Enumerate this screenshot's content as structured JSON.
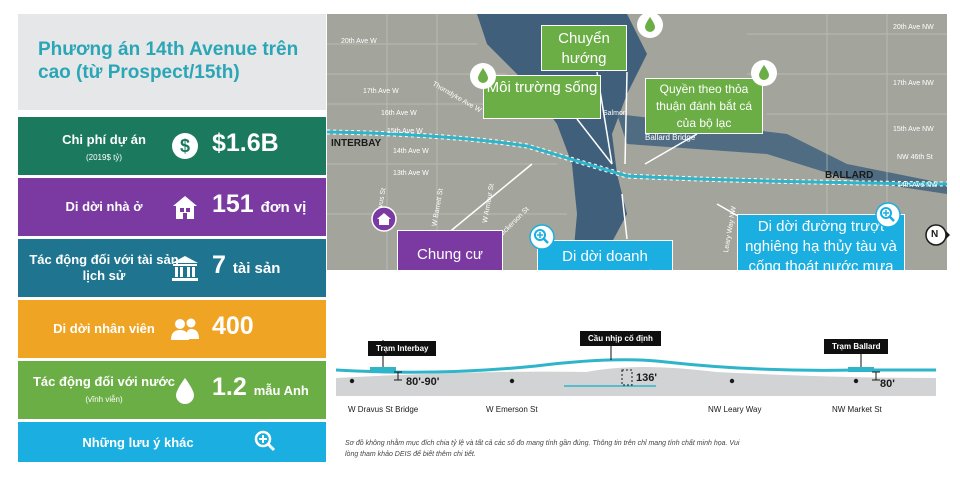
{
  "title": "Phương án 14th Avenue trên cao (từ Prospect/15th)",
  "metrics": {
    "cost": {
      "label": "Chi phí dự án",
      "sublabel": "(2019$ tỷ)",
      "value": "$1.6B",
      "icon": "dollar-icon"
    },
    "housing": {
      "label": "Di dời nhà ở",
      "value": "151",
      "unit": "đơn vị",
      "icon": "house-icon"
    },
    "historic": {
      "label": "Tác động đối với tài sản lịch sử",
      "value": "7",
      "unit": "tài sản",
      "icon": "landmark-icon"
    },
    "employees": {
      "label": "Di dời nhân viên",
      "value": "400",
      "icon": "people-icon"
    },
    "water": {
      "label": "Tác động đối với nước",
      "sublabel": "(vĩnh viễn)",
      "value": "1.2",
      "unit": "mẫu Anh",
      "icon": "water-drop-icon"
    },
    "more": {
      "label": "Những lưu ý khác",
      "icon": "magnifier-plus-icon"
    }
  },
  "map": {
    "places": [
      "INTERBAY",
      "BALLARD"
    ],
    "streets": [
      "20th Ave W",
      "17th Ave W",
      "16th Ave W",
      "15th Ave W",
      "14th Ave W",
      "13th Ave W",
      "W Dravus St",
      "W Barrett St",
      "W Armour St",
      "Thorndyke Ave W",
      "W Nickerson St",
      "Ballard Bridge",
      "Salmon",
      "20th Ave NW",
      "17th Ave NW",
      "15th Ave NW",
      "14th Ave NW",
      "Leary Way NW",
      "NW 46th St"
    ],
    "callouts": {
      "diversion": "Chuyển hướng",
      "environment": "Môi trường sống",
      "treaty": "Quyền theo thỏa thuận đánh bắt cá của bộ lạc",
      "condo": "Chung cư",
      "maritime": "Di dời doanh nghiệp hàng hải",
      "stormwater": "Di dời đường trượt nghiêng hạ thủy tàu và cống thoát nước mưa"
    },
    "north": "N",
    "colors": {
      "route": "#2fb5c9",
      "water": "#3f5f7a",
      "land": "#a3a49c"
    }
  },
  "profile": {
    "stations": [
      "Trạm Interbay",
      "Trạm Ballard"
    ],
    "span_label": "Cầu nhịp cố định",
    "clearances": [
      "80'-90'",
      "136'",
      "80'"
    ],
    "cross_streets": [
      "W Dravus St Bridge",
      "W Emerson St",
      "NW Leary Way",
      "NW Market St"
    ]
  },
  "note": "Sơ đồ không nhằm mục đích chia tỷ lệ và tất cả các số đo mang tính gần đúng. Thông tin trên chỉ mang tính chất minh họa. Vui lòng tham khảo DEIS để biết thêm chi tiết."
}
